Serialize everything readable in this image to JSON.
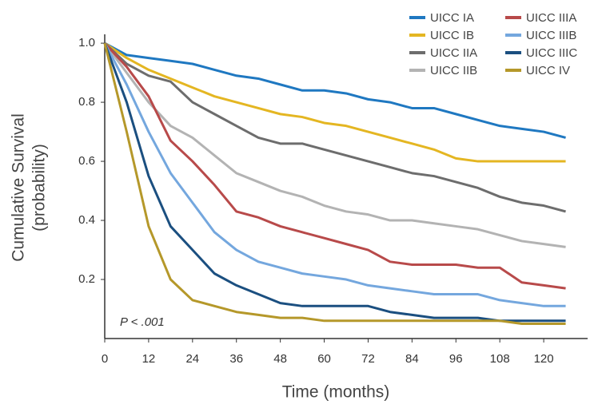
{
  "chart_data": {
    "type": "line",
    "xlabel": "Time (months)",
    "ylabel": [
      "Cumulative Survival",
      "(probability)"
    ],
    "annotation": "P < .001",
    "x": [
      0,
      6,
      12,
      18,
      24,
      30,
      36,
      42,
      48,
      54,
      60,
      66,
      72,
      78,
      84,
      90,
      96,
      102,
      108,
      114,
      120,
      126
    ],
    "series": [
      {
        "name": "UICC IA",
        "color": "#1f78c1",
        "values": [
          1.0,
          0.96,
          0.95,
          0.94,
          0.93,
          0.91,
          0.89,
          0.88,
          0.86,
          0.84,
          0.84,
          0.83,
          0.81,
          0.8,
          0.78,
          0.78,
          0.76,
          0.74,
          0.72,
          0.71,
          0.7,
          0.68
        ]
      },
      {
        "name": "UICC IB",
        "color": "#e4b622",
        "values": [
          1.0,
          0.95,
          0.91,
          0.88,
          0.85,
          0.82,
          0.8,
          0.78,
          0.76,
          0.75,
          0.73,
          0.72,
          0.7,
          0.68,
          0.66,
          0.64,
          0.61,
          0.6,
          0.6,
          0.6,
          0.6,
          0.6
        ]
      },
      {
        "name": "UICC IIA",
        "color": "#6d6d6d",
        "values": [
          1.0,
          0.93,
          0.89,
          0.87,
          0.8,
          0.76,
          0.72,
          0.68,
          0.66,
          0.66,
          0.64,
          0.62,
          0.6,
          0.58,
          0.56,
          0.55,
          0.53,
          0.51,
          0.48,
          0.46,
          0.45,
          0.43
        ]
      },
      {
        "name": "UICC IIB",
        "color": "#b3b3b3",
        "values": [
          1.0,
          0.9,
          0.8,
          0.72,
          0.68,
          0.62,
          0.56,
          0.53,
          0.5,
          0.48,
          0.45,
          0.43,
          0.42,
          0.4,
          0.4,
          0.39,
          0.38,
          0.37,
          0.35,
          0.33,
          0.32,
          0.31
        ]
      },
      {
        "name": "UICC IIIA",
        "color": "#b84a4a",
        "values": [
          1.0,
          0.92,
          0.82,
          0.67,
          0.6,
          0.52,
          0.43,
          0.41,
          0.38,
          0.36,
          0.34,
          0.32,
          0.3,
          0.26,
          0.25,
          0.25,
          0.25,
          0.24,
          0.24,
          0.19,
          0.18,
          0.17
        ]
      },
      {
        "name": "UICC IIIB",
        "color": "#74a7de",
        "values": [
          1.0,
          0.86,
          0.7,
          0.56,
          0.46,
          0.36,
          0.3,
          0.26,
          0.24,
          0.22,
          0.21,
          0.2,
          0.18,
          0.17,
          0.16,
          0.15,
          0.15,
          0.15,
          0.13,
          0.12,
          0.11,
          0.11
        ]
      },
      {
        "name": "UICC IIIC",
        "color": "#1b4f80",
        "values": [
          1.0,
          0.8,
          0.55,
          0.38,
          0.3,
          0.22,
          0.18,
          0.15,
          0.12,
          0.11,
          0.11,
          0.11,
          0.11,
          0.09,
          0.08,
          0.07,
          0.07,
          0.07,
          0.06,
          0.06,
          0.06,
          0.06
        ]
      },
      {
        "name": "UICC IV",
        "color": "#b5982a",
        "values": [
          1.0,
          0.7,
          0.38,
          0.2,
          0.13,
          0.11,
          0.09,
          0.08,
          0.07,
          0.07,
          0.06,
          0.06,
          0.06,
          0.06,
          0.06,
          0.06,
          0.06,
          0.06,
          0.06,
          0.05,
          0.05,
          0.05
        ]
      }
    ],
    "xlim": [
      0,
      132
    ],
    "ylim": [
      0,
      1.03
    ],
    "xticks": [
      0,
      12,
      24,
      36,
      48,
      60,
      72,
      84,
      96,
      108,
      120
    ],
    "yticks": [
      {
        "value": 0.2,
        "label": "0.2"
      },
      {
        "value": 0.4,
        "label": "0.4"
      },
      {
        "value": 0.6,
        "label": "0.6"
      },
      {
        "value": 0.8,
        "label": "0.8"
      },
      {
        "value": 1.0,
        "label": "1.0"
      }
    ],
    "grid": false,
    "legend_position": "upper right"
  }
}
